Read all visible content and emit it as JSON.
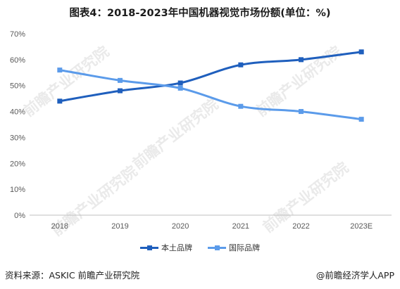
{
  "title": "图表4：2018-2023年中国机器视觉市场份额(单位：%)",
  "watermark": "前瞻产业研究院",
  "chart_data": {
    "type": "line",
    "title": "图表4：2018-2023年中国机器视觉市场份额(单位：%)",
    "categories": [
      "2018",
      "2019",
      "2020",
      "2021",
      "2022",
      "2023E"
    ],
    "y_ticks": [
      "0%",
      "10%",
      "20%",
      "30%",
      "40%",
      "50%",
      "60%",
      "70%"
    ],
    "ylim": [
      0,
      70
    ],
    "grid": false,
    "legend_position": "bottom",
    "series": [
      {
        "name": "本土品牌",
        "color": "#1f5fbd",
        "values": [
          44,
          48,
          51,
          58,
          60,
          63
        ]
      },
      {
        "name": "国际品牌",
        "color": "#5b9bea",
        "values": [
          56,
          52,
          49,
          42,
          40,
          37
        ]
      }
    ]
  },
  "footer": {
    "source": "资料来源：ASKIC 前瞻产业研究院",
    "brand": "@前瞻经济学人APP"
  }
}
